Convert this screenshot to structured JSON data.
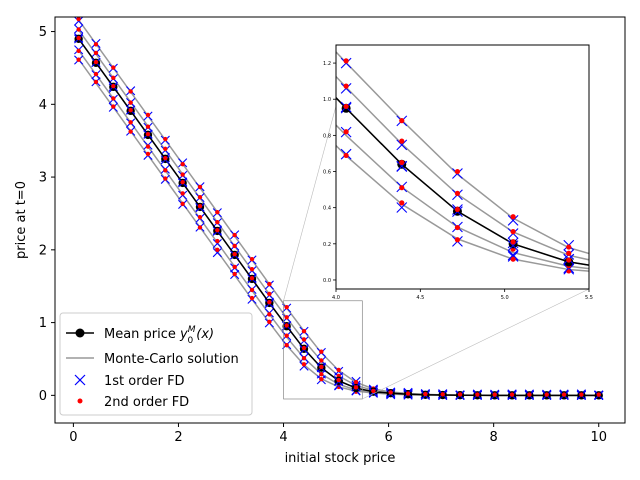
{
  "chart_data": {
    "type": "line",
    "xlabel": "initial stock price",
    "ylabel": "price at t=0",
    "xlim": [
      -0.35,
      10.5
    ],
    "ylim": [
      -0.38,
      5.2
    ],
    "xticks": [
      0,
      2,
      4,
      6,
      8,
      10
    ],
    "yticks": [
      0,
      1,
      2,
      3,
      4,
      5
    ],
    "legend_position": "lower-left",
    "legend": {
      "mean": "Mean price ",
      "mean_math_y": "y",
      "mean_math_sup": "M",
      "mean_math_sub": "0",
      "mean_math_tail": "(x)",
      "mc": "Monte-Carlo solution",
      "fd1": "1st order FD",
      "fd2": "2nd order FD"
    },
    "x": [
      0.1,
      0.43,
      0.76,
      1.09,
      1.42,
      1.75,
      2.08,
      2.41,
      2.74,
      3.07,
      3.4,
      3.73,
      4.06,
      4.39,
      4.72,
      5.05,
      5.38,
      5.71,
      6.04,
      6.37,
      6.7,
      7.03,
      7.36,
      7.69,
      8.02,
      8.35,
      8.68,
      9.01,
      9.34,
      9.67,
      10.0
    ],
    "mean": [
      4.9,
      4.57,
      4.24,
      3.91,
      3.58,
      3.25,
      2.92,
      2.59,
      2.26,
      1.93,
      1.6,
      1.27,
      0.95,
      0.64,
      0.38,
      0.2,
      0.1,
      0.05,
      0.03,
      0.015,
      0.008,
      0.004,
      0.002,
      0.001,
      0.0,
      0.0,
      0.0,
      0.0,
      0.0,
      0.0,
      0.0
    ],
    "offsets": [
      -0.28,
      -0.16,
      0.0,
      0.12,
      0.26
    ],
    "inset": {
      "xlim": [
        4.0,
        5.5
      ],
      "ylim": [
        -0.05,
        1.3
      ],
      "xticks": [
        4.0,
        4.5,
        5.0,
        5.5
      ],
      "yticks": [
        0.0,
        0.2,
        0.4,
        0.6,
        0.8,
        1.0,
        1.2
      ],
      "xtick_labels": [
        "4.0",
        "4.5",
        "5.0",
        "5.5"
      ],
      "ytick_labels": [
        "0.0",
        "0.2",
        "0.4",
        "0.6",
        "0.8",
        "1.0",
        "1.2"
      ]
    }
  }
}
